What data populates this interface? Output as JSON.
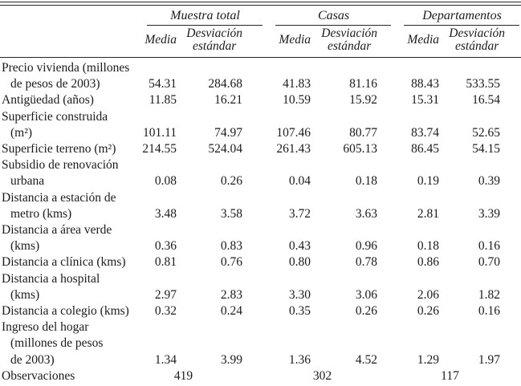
{
  "table": {
    "colors": {
      "ink": "#1b1b1b",
      "background": "#ffffff",
      "rule": "#262626"
    },
    "header": {
      "groups": [
        {
          "label": "Muestra total"
        },
        {
          "label": "Casas"
        },
        {
          "label": "Departamentos"
        }
      ],
      "media_label": "Media",
      "sd_line1": "Desviación",
      "sd_line2": "estándar"
    },
    "rows": [
      {
        "label_lines": [
          "Precio vivienda (millones",
          "de pesos de 2003)"
        ],
        "values": [
          "54.31",
          "284.68",
          "41.83",
          "81.16",
          "88.43",
          "533.55"
        ]
      },
      {
        "label_lines": [
          "Antigüedad (años)"
        ],
        "values": [
          "11.85",
          "16.21",
          "10.59",
          "15.92",
          "15.31",
          "16.54"
        ]
      },
      {
        "label_lines": [
          "Superficie construida",
          "(m²)"
        ],
        "values": [
          "101.11",
          "74.97",
          "107.46",
          "80.77",
          "83.74",
          "52.65"
        ]
      },
      {
        "label_lines": [
          "Superficie terreno (m²)"
        ],
        "values": [
          "214.55",
          "524.04",
          "261.43",
          "605.13",
          "86.45",
          "54.15"
        ]
      },
      {
        "label_lines": [
          "Subsidio de renovación",
          "urbana"
        ],
        "values": [
          "0.08",
          "0.26",
          "0.04",
          "0.18",
          "0.19",
          "0.39"
        ]
      },
      {
        "label_lines": [
          "Distancia a estación de",
          "metro (kms)"
        ],
        "values": [
          "3.48",
          "3.58",
          "3.72",
          "3.63",
          "2.81",
          "3.39"
        ]
      },
      {
        "label_lines": [
          "Distancia a área verde",
          "(kms)"
        ],
        "values": [
          "0.36",
          "0.83",
          "0.43",
          "0.96",
          "0.18",
          "0.16"
        ]
      },
      {
        "label_lines": [
          "Distancia a clínica (kms)"
        ],
        "values": [
          "0.81",
          "0.76",
          "0.80",
          "0.78",
          "0.86",
          "0.70"
        ]
      },
      {
        "label_lines": [
          "Distancia a hospital",
          "(kms)"
        ],
        "values": [
          "2.97",
          "2.83",
          "3.30",
          "3.06",
          "2.06",
          "1.82"
        ]
      },
      {
        "label_lines": [
          "Distancia a colegio (kms)"
        ],
        "values": [
          "0.32",
          "0.24",
          "0.35",
          "0.26",
          "0.26",
          "0.16"
        ]
      },
      {
        "label_lines": [
          "Ingreso del hogar",
          "(millones de pesos",
          "de 2003)"
        ],
        "values": [
          "1.34",
          "3.99",
          "1.36",
          "4.52",
          "1.29",
          "1.97"
        ]
      },
      {
        "label_lines": [
          "Observaciones"
        ],
        "group_values": [
          "419",
          "302",
          "117"
        ]
      }
    ]
  }
}
